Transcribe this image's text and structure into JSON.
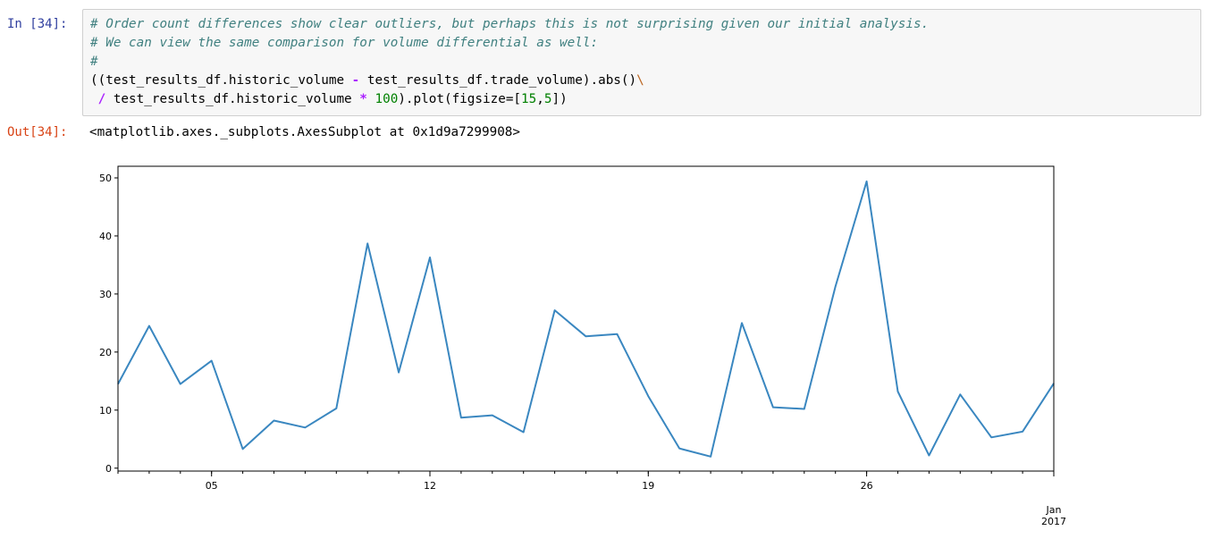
{
  "cell_in": {
    "prompt": "In [34]:",
    "code_lines": [
      [
        {
          "t": "# Order count differences show clear outliers, but perhaps this is not surprising given our initial analysis.",
          "c": "cmt"
        }
      ],
      [
        {
          "t": "# We can view the same comparison for volume differential as well:",
          "c": "cmt"
        }
      ],
      [
        {
          "t": "#",
          "c": "cmt"
        }
      ],
      [
        {
          "t": "((test_results_df.historic_volume ",
          "c": ""
        },
        {
          "t": "-",
          "c": "op"
        },
        {
          "t": " test_results_df.trade_volume).abs()",
          "c": ""
        },
        {
          "t": "\\",
          "c": "esc"
        }
      ],
      [
        {
          "t": " ",
          "c": ""
        },
        {
          "t": "/",
          "c": "op"
        },
        {
          "t": " test_results_df.historic_volume ",
          "c": ""
        },
        {
          "t": "*",
          "c": "op"
        },
        {
          "t": " ",
          "c": ""
        },
        {
          "t": "100",
          "c": "num"
        },
        {
          "t": ").plot(figsize=[",
          "c": ""
        },
        {
          "t": "15",
          "c": "num"
        },
        {
          "t": ",",
          "c": ""
        },
        {
          "t": "5",
          "c": "num"
        },
        {
          "t": "])",
          "c": ""
        }
      ]
    ]
  },
  "cell_out": {
    "prompt": "Out[34]:",
    "text": "<matplotlib.axes._subplots.AxesSubplot at 0x1d9a7299908>"
  },
  "chart_data": {
    "type": "line",
    "x": [
      "2016-12-02",
      "2016-12-03",
      "2016-12-04",
      "2016-12-05",
      "2016-12-06",
      "2016-12-07",
      "2016-12-08",
      "2016-12-09",
      "2016-12-10",
      "2016-12-11",
      "2016-12-12",
      "2016-12-13",
      "2016-12-14",
      "2016-12-15",
      "2016-12-16",
      "2016-12-17",
      "2016-12-18",
      "2016-12-19",
      "2016-12-20",
      "2016-12-21",
      "2016-12-22",
      "2016-12-23",
      "2016-12-24",
      "2016-12-25",
      "2016-12-26",
      "2016-12-27",
      "2016-12-28",
      "2016-12-29",
      "2016-12-30",
      "2016-12-31",
      "2017-01-01"
    ],
    "series": [
      {
        "values": [
          14.5,
          24.5,
          14.5,
          18.5,
          3.3,
          8.2,
          7.0,
          10.3,
          38.7,
          16.5,
          36.3,
          8.7,
          9.1,
          6.2,
          27.2,
          22.7,
          23.1,
          12.4,
          3.4,
          2.0,
          25.0,
          10.5,
          10.2,
          31.3,
          49.4,
          13.2,
          2.2,
          12.7,
          5.3,
          6.3,
          14.6
        ],
        "color": "#3a87c0"
      }
    ],
    "ylim": [
      -0.5,
      52
    ],
    "yticks": [
      0,
      10,
      20,
      30,
      40,
      50
    ],
    "xticks": [
      {
        "x": "2016-12-05",
        "label": "05"
      },
      {
        "x": "2016-12-12",
        "label": "12"
      },
      {
        "x": "2016-12-19",
        "label": "19"
      },
      {
        "x": "2016-12-26",
        "label": "26"
      },
      {
        "x": "2017-01-01",
        "label": "Jan",
        "sublabel": "2017"
      }
    ],
    "title": "",
    "xlabel": "",
    "ylabel": "",
    "grid": false
  }
}
